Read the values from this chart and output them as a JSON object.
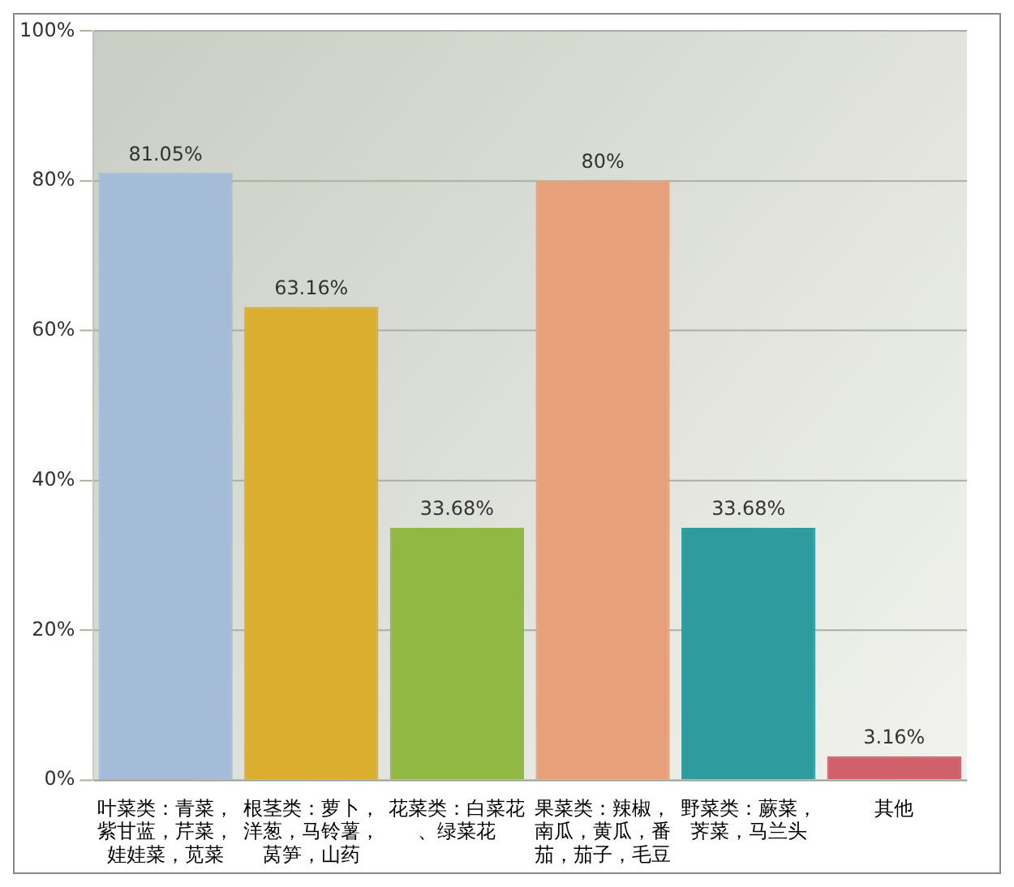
{
  "chart_data": {
    "type": "bar",
    "categories": [
      "叶菜类：青菜，紫甘蓝，芹菜，娃娃菜，苋菜",
      "根茎类：萝卜，洋葱，马铃薯，莴笋，山药",
      "花菜类：白菜花、绿菜花",
      "果菜类：辣椒，南瓜，黄瓜，番茄，茄子，毛豆",
      "野菜类：蕨菜，荠菜，马兰头",
      "其他"
    ],
    "values": [
      81.05,
      63.16,
      33.68,
      80,
      33.68,
      3.16
    ],
    "value_labels": [
      "81.05%",
      "63.16%",
      "33.68%",
      "80%",
      "33.68%",
      "3.16%"
    ],
    "colors": [
      "#a4bcd8",
      "#dcae30",
      "#92b844",
      "#e8a07a",
      "#2e9c9e",
      "#d0606a"
    ],
    "ylim": [
      0,
      100
    ],
    "yticks": [
      {
        "value": 0,
        "label": "0%"
      },
      {
        "value": 20,
        "label": "20%"
      },
      {
        "value": 40,
        "label": "40%"
      },
      {
        "value": 60,
        "label": "60%"
      },
      {
        "value": 80,
        "label": "80%"
      },
      {
        "value": 100,
        "label": "100%"
      }
    ],
    "grid": "y",
    "legend": false
  }
}
